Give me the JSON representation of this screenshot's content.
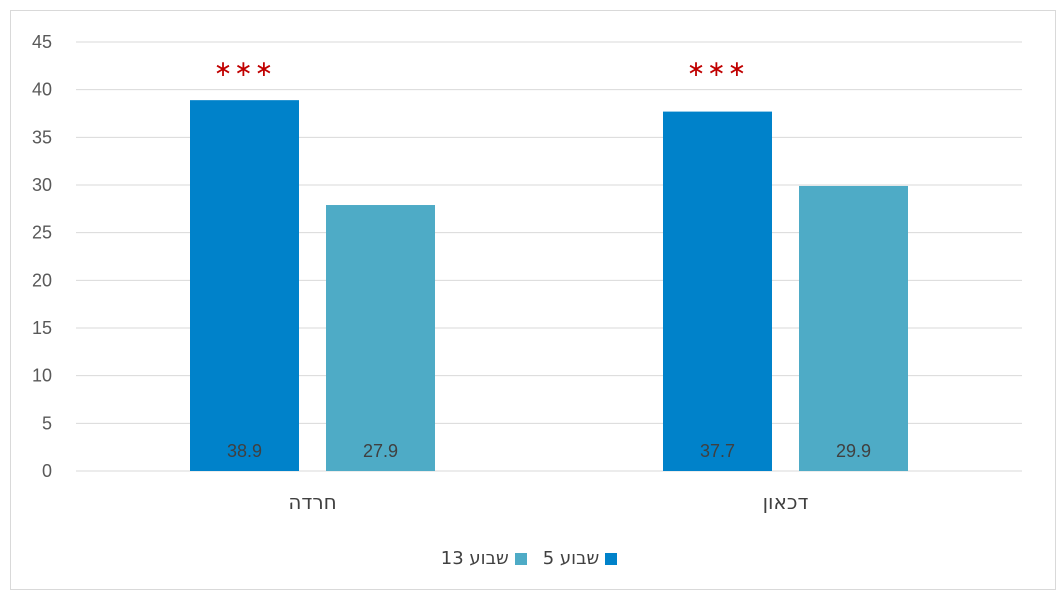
{
  "chart_data": {
    "type": "bar",
    "categories": [
      "חרדה",
      "דכאון"
    ],
    "series": [
      {
        "name": "שבוע 5",
        "values": [
          38.9,
          37.7
        ],
        "color": "#0082ca"
      },
      {
        "name": "שבוע 13",
        "values": [
          27.9,
          29.9
        ],
        "color": "#4eabc6"
      }
    ],
    "data_labels": [
      "38.9",
      "27.9",
      "37.7",
      "29.9"
    ],
    "significance": [
      "***",
      "***"
    ],
    "significance_color": "#c00000",
    "yticks": [
      "0",
      "5",
      "10",
      "15",
      "20",
      "25",
      "30",
      "35",
      "40",
      "45"
    ],
    "ylim": [
      0,
      45
    ],
    "grid": true,
    "legend_position": "bottom"
  }
}
